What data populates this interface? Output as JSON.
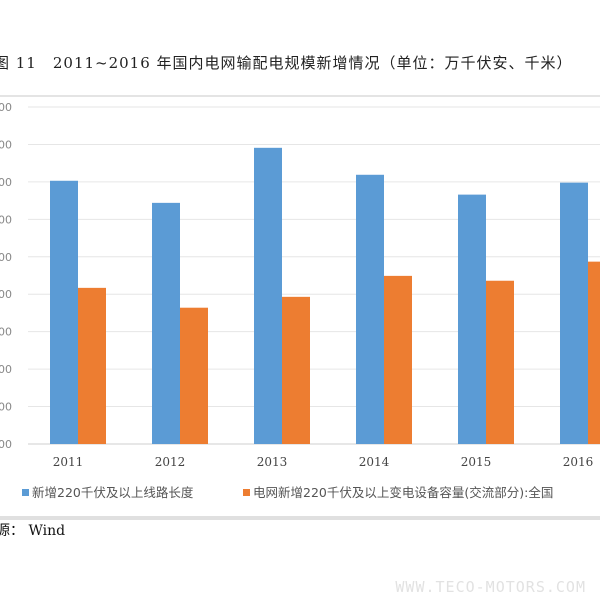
{
  "title": "图 11　2011~2016 年国内电网输配电规模新增情况（单位：万千伏安、千米）",
  "source": "源： Wind",
  "watermark": "WWW.TECO-MOTORS.COM",
  "chart_data": {
    "type": "bar",
    "title": "图 11　2011~2016 年国内电网输配电规模新增情况（单位：万千伏安、千米）",
    "categories": [
      "2011",
      "2012",
      "2013",
      "2014",
      "2015",
      "2016"
    ],
    "ytick_labels": [
      "00",
      "00",
      "00",
      "00",
      "00",
      "00",
      "00",
      "00",
      "00",
      "00"
    ],
    "ylim": [
      0,
      9
    ],
    "grid": true,
    "legend_position": "bottom",
    "series": [
      {
        "name": "新增220千伏及以上线路长度",
        "color": "#5b9bd5",
        "values": [
          7.03,
          6.44,
          7.91,
          7.19,
          6.66,
          6.98
        ]
      },
      {
        "name": "电网新增220千伏及以上变电设备容量(交流部分):全国",
        "color": "#ed7d31",
        "values": [
          4.17,
          3.64,
          3.93,
          4.49,
          4.36,
          4.87
        ]
      }
    ]
  }
}
